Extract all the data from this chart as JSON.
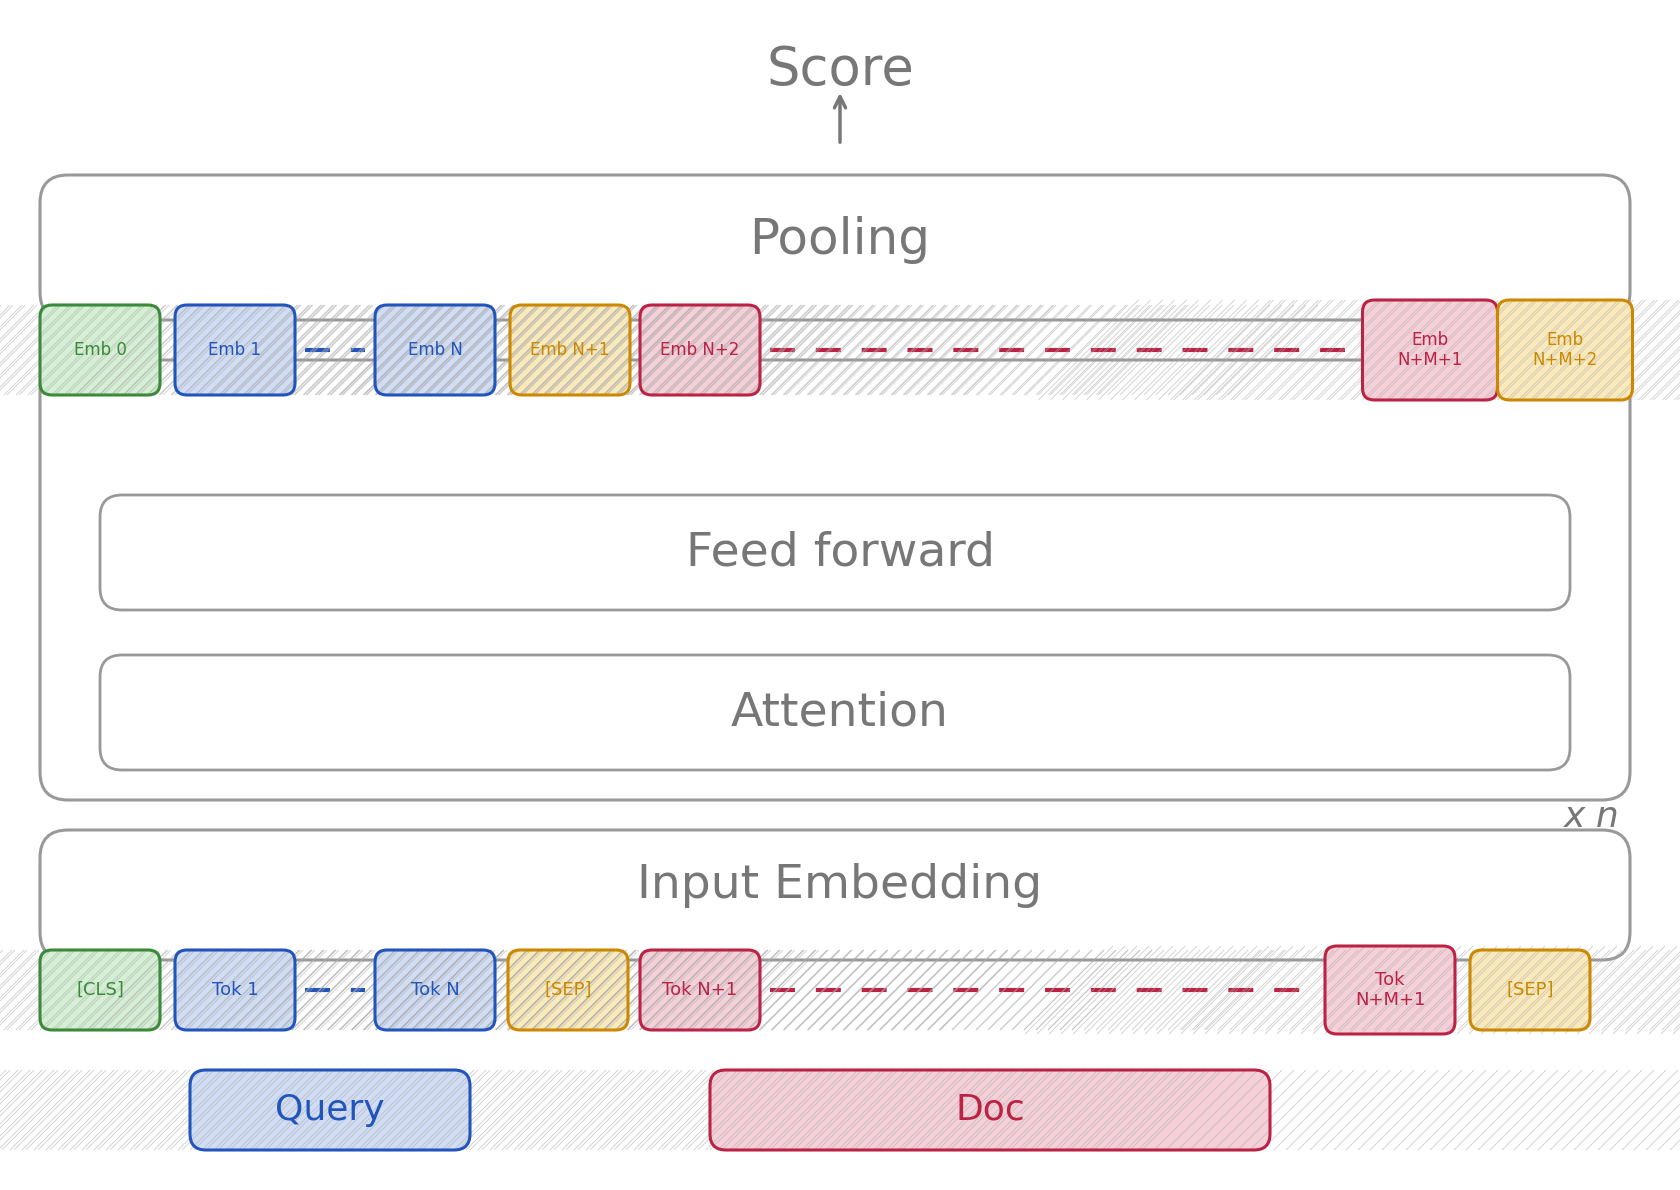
{
  "bg_color": "#ffffff",
  "gray": "#999999",
  "dark_gray": "#777777",
  "green": "#3a8a3a",
  "blue": "#2255bb",
  "orange": "#cc8800",
  "red": "#bb2244",
  "hatch_green": "#d4efd4",
  "hatch_blue": "#d0ddf5",
  "hatch_orange": "#faeabb",
  "hatch_red": "#f5d0d8",
  "score_text": "Score",
  "pooling_text": "Pooling",
  "ff_text": "Feed forward",
  "att_text": "Attention",
  "ie_text": "Input Embedding",
  "xn_text": "x n",
  "query_text": "Query",
  "doc_text": "Doc",
  "emb_labels": [
    "Emb 0",
    "Emb 1",
    "Emb N",
    "Emb N+1",
    "Emb N+2",
    "Emb\nN+M+1",
    "Emb\nN+M+2"
  ],
  "emb_colors": [
    "green",
    "blue",
    "blue",
    "orange",
    "red",
    "red",
    "orange"
  ],
  "tok_labels": [
    "[CLS]",
    "Tok 1",
    "Tok N",
    "[SEP]",
    "Tok N+1",
    "Tok\nN+M+1",
    "[SEP]"
  ],
  "tok_colors": [
    "green",
    "blue",
    "blue",
    "orange",
    "red",
    "red",
    "orange"
  ]
}
